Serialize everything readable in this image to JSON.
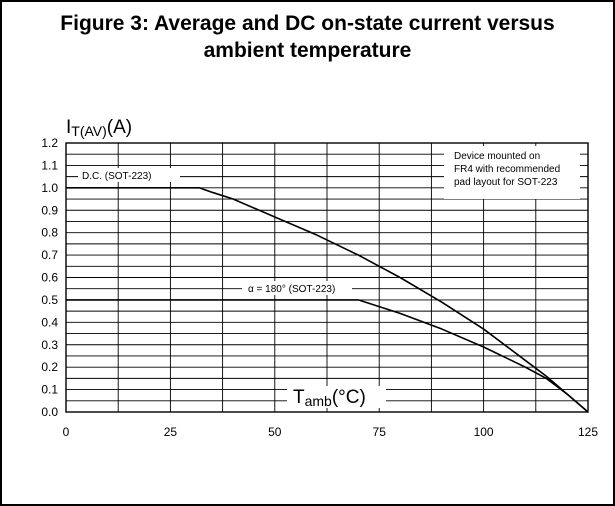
{
  "figure": {
    "title_line1": "Figure 3: Average and DC on-state current versus",
    "title_line2": "ambient temperature"
  },
  "chart_data": {
    "type": "line",
    "ylabel_main": "I",
    "ylabel_sub": "T(AV)",
    "ylabel_unit": "(A)",
    "xlabel_main": "T",
    "xlabel_sub": "amb",
    "xlabel_unit": "(°C)",
    "xlim": [
      0,
      125
    ],
    "ylim": [
      0,
      1.2
    ],
    "x_ticks": [
      0,
      25,
      50,
      75,
      100,
      125
    ],
    "x_tick_labels": [
      "0",
      "25",
      "50",
      "75",
      "100",
      "125"
    ],
    "y_ticks": [
      0.0,
      0.1,
      0.2,
      0.3,
      0.4,
      0.5,
      0.6,
      0.7,
      0.8,
      0.9,
      1.0,
      1.1,
      1.2
    ],
    "y_tick_labels": [
      "0.0",
      "0.1",
      "0.2",
      "0.3",
      "0.4",
      "0.5",
      "0.6",
      "0.7",
      "0.8",
      "0.9",
      "1.0",
      "1.1",
      "1.2"
    ],
    "grid": true,
    "annotation": [
      "Device mounted on",
      "FR4 with recommended",
      "pad layout for SOT-223"
    ],
    "series": [
      {
        "name": "D.C. (SOT-223)",
        "x": [
          0,
          32,
          35,
          40,
          50,
          60,
          70,
          80,
          90,
          100,
          110,
          115,
          120,
          125
        ],
        "y": [
          1.0,
          1.0,
          0.98,
          0.95,
          0.87,
          0.79,
          0.7,
          0.6,
          0.49,
          0.37,
          0.23,
          0.16,
          0.08,
          0.0
        ]
      },
      {
        "name": "α = 180° (SOT-223)",
        "x": [
          0,
          70,
          75,
          80,
          90,
          100,
          110,
          115,
          120,
          125
        ],
        "y": [
          0.5,
          0.5,
          0.47,
          0.44,
          0.37,
          0.29,
          0.2,
          0.15,
          0.08,
          0.0
        ]
      }
    ]
  }
}
